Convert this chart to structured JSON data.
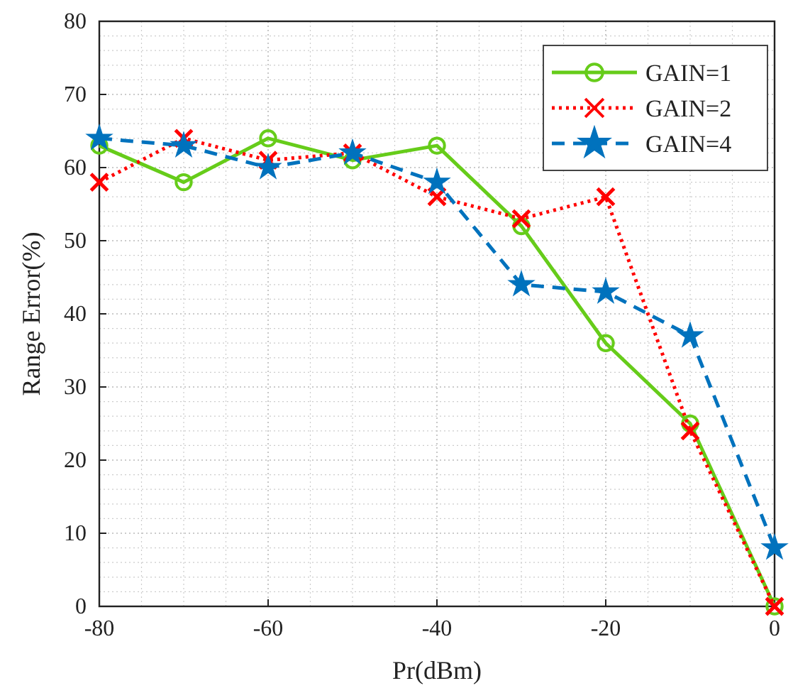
{
  "chart_data": {
    "type": "line",
    "xlabel": "Pr(dBm)",
    "ylabel": "Range Error(%)",
    "x": [
      -80,
      -70,
      -60,
      -50,
      -40,
      -30,
      -20,
      -10,
      0
    ],
    "xlim": [
      -80,
      0
    ],
    "xticks": [
      -80,
      -60,
      -40,
      -20,
      0
    ],
    "ylim": [
      0,
      80
    ],
    "yticks": [
      0,
      10,
      20,
      30,
      40,
      50,
      60,
      70,
      80
    ],
    "grid": true,
    "legend": "top right",
    "series": [
      {
        "name": "GAIN=1",
        "color": "#66cc1a",
        "marker": "circle",
        "line_style": "solid",
        "values": [
          63,
          58,
          64,
          61,
          63,
          52,
          36,
          25,
          0
        ]
      },
      {
        "name": "GAIN=2",
        "color": "#ff0000",
        "marker": "cross",
        "line_style": "dotted",
        "values": [
          58,
          64,
          61,
          62,
          56,
          53,
          56,
          24,
          0
        ]
      },
      {
        "name": "GAIN=4",
        "color": "#0072bd",
        "marker": "star",
        "line_style": "dashed",
        "values": [
          64,
          63,
          60,
          62,
          58,
          44,
          43,
          37,
          8
        ]
      }
    ]
  }
}
